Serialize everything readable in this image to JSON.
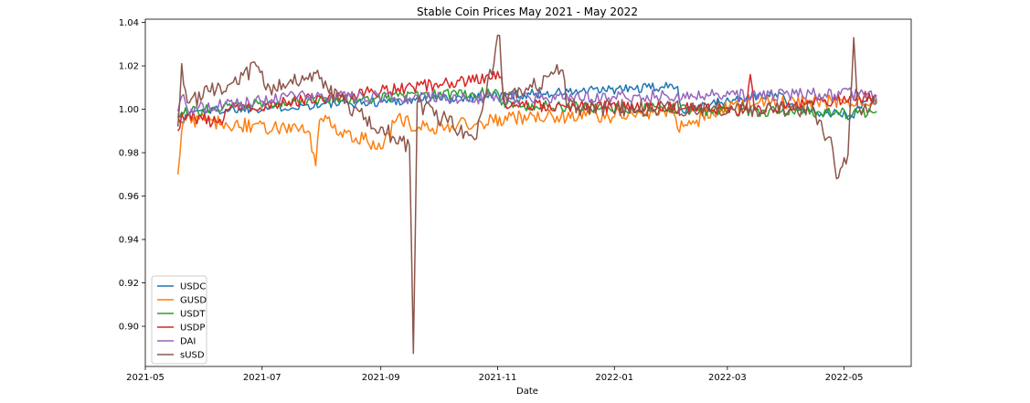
{
  "chart_data": {
    "type": "line",
    "title": "Stable Coin Prices May 2021 - May 2022",
    "xlabel": "Date",
    "ylabel": "",
    "x_start": "2021-05-18",
    "x_end": "2022-05-18",
    "xlim": [
      "2021-05-01",
      "2022-06-05"
    ],
    "ylim": [
      0.8815,
      1.0415
    ],
    "x_ticks": [
      "2021-05-01",
      "2021-07-01",
      "2021-09-01",
      "2021-11-01",
      "2022-01-01",
      "2022-03-01",
      "2022-05-01"
    ],
    "x_tick_labels": [
      "2021-05",
      "2021-07",
      "2021-09",
      "2021-11",
      "2022-01",
      "2022-03",
      "2022-05"
    ],
    "y_ticks": [
      0.9,
      0.92,
      0.94,
      0.96,
      0.98,
      1.0,
      1.02,
      1.04
    ],
    "y_tick_labels": [
      "0.90",
      "0.92",
      "0.94",
      "0.96",
      "0.98",
      "1.00",
      "1.02",
      "1.04"
    ],
    "grid": false,
    "legend_position": "lower-left",
    "series": [
      {
        "name": "USDC",
        "color": "#1f77b4",
        "noise": 0.0022,
        "points": [
          [
            "2021-05-18",
            0.997
          ],
          [
            "2021-05-20",
            0.994
          ],
          [
            "2021-05-25",
            0.999
          ],
          [
            "2022-02-03",
            1.0105
          ],
          [
            "2022-02-05",
            1.0
          ],
          [
            "2022-03-28",
            1.0078
          ],
          [
            "2022-03-30",
            1.007
          ],
          [
            "2022-04-02",
            1.001
          ],
          [
            "2022-04-25",
            0.998
          ],
          [
            "2022-05-05",
            0.997
          ],
          [
            "2022-05-14",
            1.0055
          ],
          [
            "2022-05-18",
            1.003
          ]
        ]
      },
      {
        "name": "GUSD",
        "color": "#ff7f0e",
        "noise": 0.0035,
        "points": [
          [
            "2021-05-18",
            0.97
          ],
          [
            "2021-05-20",
            0.99
          ],
          [
            "2021-05-22",
            0.995
          ],
          [
            "2021-07-25",
            0.99
          ],
          [
            "2021-07-29",
            0.974
          ],
          [
            "2021-07-31",
            0.995
          ],
          [
            "2021-08-23",
            0.986
          ],
          [
            "2021-09-02",
            0.982
          ],
          [
            "2021-09-10",
            0.997
          ],
          [
            "2021-09-20",
            0.991
          ],
          [
            "2021-11-10",
            0.996
          ],
          [
            "2022-02-01",
            0.998
          ],
          [
            "2022-02-03",
            0.991
          ],
          [
            "2022-03-05",
            1.003
          ],
          [
            "2022-05-18",
            1.004
          ]
        ]
      },
      {
        "name": "USDT",
        "color": "#2ca02c",
        "noise": 0.0025,
        "points": [
          [
            "2021-05-18",
            0.998
          ],
          [
            "2021-06-20",
            1.002
          ],
          [
            "2021-11-01",
            1.008
          ],
          [
            "2021-11-03",
            1.002
          ],
          [
            "2022-05-10",
            0.998
          ],
          [
            "2022-05-18",
            0.999
          ]
        ]
      },
      {
        "name": "USDP",
        "color": "#d62728",
        "noise": 0.0028,
        "points": [
          [
            "2021-05-18",
            0.99
          ],
          [
            "2021-05-20",
            0.998
          ],
          [
            "2021-06-10",
            0.993
          ],
          [
            "2021-06-12",
            1.0
          ],
          [
            "2021-11-03",
            1.015
          ],
          [
            "2021-11-05",
            1.002
          ],
          [
            "2022-03-11",
            1.0
          ],
          [
            "2022-03-13",
            1.016
          ],
          [
            "2022-03-15",
            1.0
          ],
          [
            "2022-05-18",
            1.006
          ]
        ]
      },
      {
        "name": "DAI",
        "color": "#9467bd",
        "noise": 0.003,
        "points": [
          [
            "2021-05-18",
            0.999
          ],
          [
            "2021-05-20",
            1.006
          ],
          [
            "2021-05-23",
            1.0
          ],
          [
            "2021-07-25",
            1.006
          ],
          [
            "2021-09-25",
            1.005
          ],
          [
            "2022-05-13",
            1.007
          ],
          [
            "2022-05-18",
            1.004
          ]
        ]
      },
      {
        "name": "sUSD",
        "color": "#8c564b",
        "noise": 0.004,
        "points": [
          [
            "2021-05-18",
            0.992
          ],
          [
            "2021-05-20",
            1.021
          ],
          [
            "2021-05-23",
            1.003
          ],
          [
            "2021-06-15",
            1.012
          ],
          [
            "2021-06-28",
            1.02
          ],
          [
            "2021-07-05",
            1.01
          ],
          [
            "2021-07-28",
            1.017
          ],
          [
            "2021-08-10",
            1.004
          ],
          [
            "2021-09-16",
            0.983
          ],
          [
            "2021-09-18",
            0.8875
          ],
          [
            "2021-09-20",
            1.003
          ],
          [
            "2021-10-20",
            0.986
          ],
          [
            "2021-10-25",
            1.005
          ],
          [
            "2021-11-02",
            1.034
          ],
          [
            "2021-11-04",
            1.004
          ],
          [
            "2021-12-05",
            1.018
          ],
          [
            "2021-12-07",
            1.001
          ],
          [
            "2022-04-15",
            1.0
          ],
          [
            "2022-04-25",
            0.982
          ],
          [
            "2022-04-27",
            0.968
          ],
          [
            "2022-05-03",
            0.979
          ],
          [
            "2022-05-06",
            1.033
          ],
          [
            "2022-05-08",
            1.001
          ],
          [
            "2022-05-18",
            1.003
          ]
        ]
      }
    ]
  }
}
